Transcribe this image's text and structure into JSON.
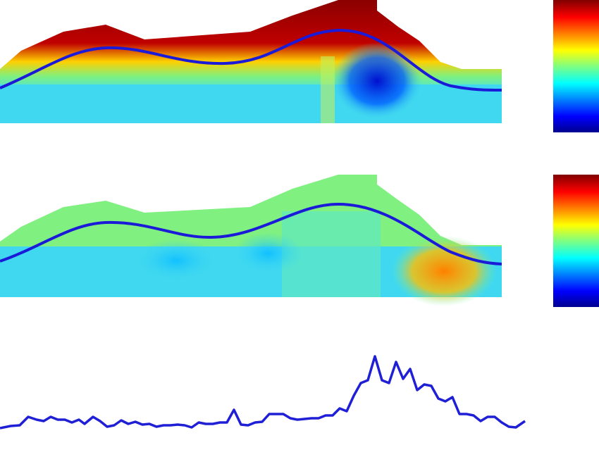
{
  "chart_data": {
    "type": "line",
    "x": [
      0,
      15,
      28,
      40,
      52,
      62,
      72,
      82,
      92,
      102,
      112,
      120,
      132,
      142,
      152,
      162,
      172,
      182,
      192,
      202,
      212,
      222,
      232,
      242,
      252,
      262,
      272,
      282,
      292,
      302,
      312,
      322,
      332,
      342,
      352,
      362,
      372,
      382,
      392,
      402,
      412,
      422,
      432,
      442,
      452,
      462,
      472,
      482,
      492,
      502,
      512,
      522,
      532,
      542,
      552,
      562,
      572,
      582,
      592,
      602,
      612,
      622,
      632,
      642,
      652,
      662,
      672,
      682,
      692,
      702,
      712,
      722,
      732,
      745
    ],
    "series": [
      {
        "color": "#1f1fd6",
        "values": [
          42,
          45,
          46,
          58,
          54,
          52,
          58,
          54,
          54,
          50,
          54,
          48,
          58,
          52,
          44,
          46,
          53,
          48,
          51,
          47,
          48,
          44,
          46,
          46,
          47,
          46,
          43,
          50,
          48,
          48,
          50,
          50,
          68,
          47,
          46,
          50,
          51,
          62,
          62,
          62,
          56,
          54,
          55,
          56,
          56,
          60,
          60,
          70,
          66,
          88,
          106,
          110,
          144,
          110,
          106,
          136,
          112,
          126,
          96,
          104,
          102,
          84,
          80,
          86,
          62,
          62,
          60,
          52,
          58,
          58,
          50,
          44,
          43,
          52
        ]
      }
    ],
    "xlim": [
      0,
      745
    ],
    "ylim": [
      0,
      160
    ]
  }
}
